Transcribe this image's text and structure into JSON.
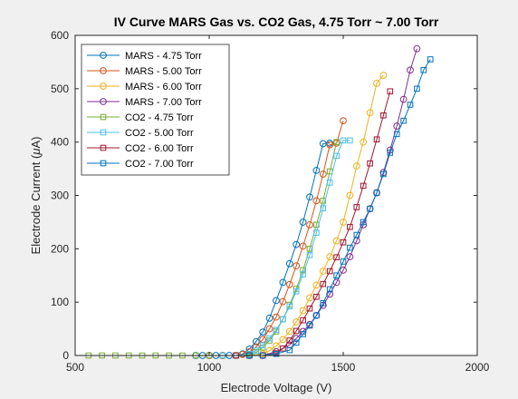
{
  "chart_data": {
    "type": "line",
    "title": "IV Curve MARS Gas vs. CO2 Gas, 4.75 Torr ~ 7.00 Torr",
    "xlabel": "Electrode Voltage (V)",
    "ylabel_prefix": "Electrode Current (",
    "ylabel_mu": "μ",
    "ylabel_suffix": "A)",
    "xlim": [
      500,
      2000
    ],
    "ylim": [
      0,
      600
    ],
    "xticks": [
      500,
      1000,
      1500,
      2000
    ],
    "yticks": [
      0,
      100,
      200,
      300,
      400,
      500,
      600
    ],
    "xtick_labels": [
      "500",
      "1000",
      "1500",
      "2000"
    ],
    "ytick_labels": [
      "0",
      "100",
      "200",
      "300",
      "400",
      "500",
      "600"
    ],
    "grid": false,
    "legend_position": "top-left",
    "series": [
      {
        "name": "MARS - 4.75 Torr",
        "color": "#0072BD",
        "marker": "circle",
        "x": [
          950,
          975,
          1000,
          1025,
          1050,
          1075,
          1100,
          1125,
          1150,
          1175,
          1200,
          1225,
          1250,
          1275,
          1300,
          1325,
          1350,
          1375,
          1400,
          1425,
          1450
        ],
        "y": [
          0,
          0,
          0,
          0,
          0,
          0,
          0,
          3,
          12,
          26,
          44,
          70,
          103,
          137,
          172,
          208,
          250,
          297,
          347,
          397,
          398
        ]
      },
      {
        "name": "MARS - 5.00 Torr",
        "color": "#D95319",
        "marker": "circle",
        "x": [
          1000,
          1050,
          1100,
          1125,
          1150,
          1175,
          1200,
          1225,
          1250,
          1275,
          1300,
          1325,
          1350,
          1375,
          1400,
          1425,
          1450,
          1475,
          1500
        ],
        "y": [
          0,
          0,
          0,
          2,
          7,
          16,
          30,
          50,
          72,
          101,
          133,
          168,
          205,
          245,
          290,
          340,
          395,
          398,
          440
        ]
      },
      {
        "name": "MARS - 6.00 Torr",
        "color": "#EDB120",
        "marker": "circle",
        "x": [
          1100,
          1150,
          1200,
          1225,
          1250,
          1275,
          1300,
          1325,
          1350,
          1375,
          1400,
          1425,
          1450,
          1475,
          1500,
          1525,
          1550,
          1575,
          1600,
          1625,
          1650
        ],
        "y": [
          0,
          0,
          3,
          9,
          18,
          30,
          45,
          63,
          84,
          108,
          132,
          158,
          185,
          215,
          250,
          300,
          355,
          400,
          455,
          510,
          525
        ]
      },
      {
        "name": "MARS - 7.00 Torr",
        "color": "#7E2F8E",
        "marker": "circle",
        "x": [
          1150,
          1200,
          1250,
          1300,
          1325,
          1350,
          1375,
          1400,
          1425,
          1450,
          1475,
          1500,
          1525,
          1550,
          1575,
          1600,
          1625,
          1650,
          1675,
          1700,
          1725,
          1750,
          1775
        ],
        "y": [
          0,
          0,
          7,
          20,
          32,
          45,
          58,
          75,
          94,
          115,
          137,
          160,
          185,
          215,
          245,
          275,
          305,
          343,
          385,
          430,
          480,
          535,
          575
        ]
      },
      {
        "name": "CO2 - 4.75 Torr",
        "color": "#77AC30",
        "marker": "square",
        "x": [
          550,
          600,
          650,
          700,
          750,
          800,
          850,
          900,
          950,
          1000,
          1050,
          1100,
          1150,
          1175,
          1200,
          1225,
          1250,
          1275,
          1300,
          1325,
          1350,
          1375,
          1400,
          1425,
          1450,
          1475
        ],
        "y": [
          0,
          0,
          0,
          0,
          0,
          0,
          0,
          0,
          0,
          0,
          0,
          0,
          2,
          6,
          15,
          28,
          45,
          68,
          95,
          125,
          160,
          200,
          245,
          290,
          345,
          400
        ]
      },
      {
        "name": "CO2 - 5.00 Torr",
        "color": "#4DBEEE",
        "marker": "square",
        "x": [
          1050,
          1100,
          1150,
          1175,
          1200,
          1225,
          1250,
          1275,
          1300,
          1325,
          1350,
          1375,
          1400,
          1425,
          1450,
          1475,
          1500,
          1525
        ],
        "y": [
          0,
          0,
          3,
          9,
          19,
          32,
          48,
          68,
          92,
          120,
          152,
          188,
          230,
          276,
          324,
          374,
          403,
          403
        ]
      },
      {
        "name": "CO2 - 6.00 Torr",
        "color": "#A2142F",
        "marker": "square",
        "x": [
          1100,
          1150,
          1200,
          1250,
          1275,
          1300,
          1325,
          1350,
          1375,
          1400,
          1425,
          1450,
          1475,
          1500,
          1525,
          1550,
          1575,
          1600,
          1625,
          1650,
          1675
        ],
        "y": [
          0,
          0,
          0,
          4,
          13,
          28,
          46,
          66,
          88,
          110,
          134,
          158,
          184,
          212,
          241,
          278,
          318,
          360,
          405,
          450,
          495
        ]
      },
      {
        "name": "CO2 - 7.00 Torr",
        "color": "#0072BD",
        "marker": "square",
        "x": [
          1150,
          1200,
          1250,
          1300,
          1325,
          1350,
          1375,
          1400,
          1425,
          1450,
          1475,
          1500,
          1525,
          1550,
          1575,
          1600,
          1625,
          1650,
          1675,
          1700,
          1725,
          1750,
          1775,
          1800,
          1825
        ],
        "y": [
          0,
          0,
          3,
          10,
          24,
          40,
          56,
          75,
          98,
          124,
          150,
          176,
          202,
          226,
          250,
          275,
          305,
          340,
          380,
          415,
          440,
          470,
          500,
          535,
          555
        ]
      }
    ]
  }
}
